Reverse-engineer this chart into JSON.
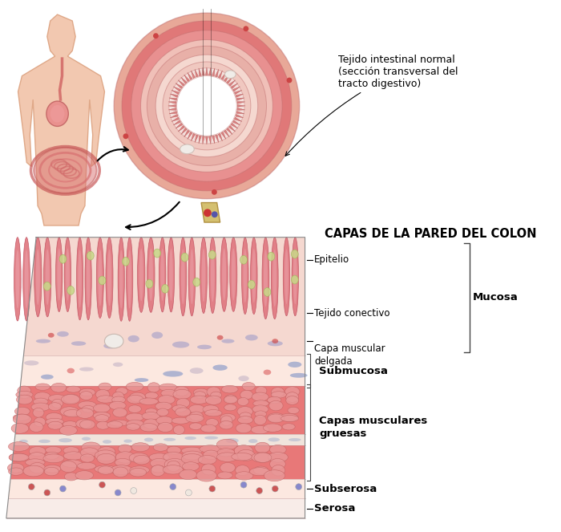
{
  "bg_color": "#ffffff",
  "title_colon": "CAPAS DE LA PARED DEL COLON",
  "label_intestinal": "Tejido intestinal normal\n(sección transversal del\ntracto digestivo)",
  "labels": {
    "epitelio": "Epitelio",
    "tejido_conectivo": "Tejido conectivo",
    "capa_muscular_delgada": "Capa muscular\ndelgada",
    "submucosa": "Submucosa",
    "capas_musculares": "Capas musculares\ngruesas",
    "subserosa": "Subserosa",
    "serosa": "Serosa",
    "mucosa": "Mucosa"
  },
  "colors": {
    "skin_light": "#f2c8b0",
    "skin_edge": "#dfa888",
    "digestive_red": "#d06060",
    "stomach_fill": "#e88888",
    "intestine_fill": "#d87070",
    "circle_outer1": "#e8a898",
    "circle_outer2": "#e07878",
    "circle_band1": "#f0c0b8",
    "circle_band2": "#e8b0a8",
    "circle_submucosa": "#f5d8d0",
    "circle_mucosa": "#f0c8c0",
    "circle_villi_bg": "#f5e0dc",
    "circle_lumen": "#ffffff",
    "circle_villi": "#e09090",
    "layer_villi_bg": "#f5d8d0",
    "layer_villi": "#e07880",
    "layer_villi_edge": "#c05060",
    "layer_ct": "#f8e0d8",
    "layer_submucosa": "#fce8e0",
    "layer_muscle_bg": "#e87878",
    "layer_muscle_light": "#f0a0a0",
    "layer_band": "#f8e8e0",
    "layer_subserosa": "#fce8e0",
    "layer_serosa": "#f5ece8",
    "goblet_green": "#c8d888",
    "goblet_edge": "#a0b860",
    "cell_purple": "#9898c8",
    "cell_red": "#cc5555",
    "cell_blue": "#8888cc",
    "stem_color": "#d4b870",
    "line_color": "#000000",
    "bracket_color": "#555555"
  }
}
